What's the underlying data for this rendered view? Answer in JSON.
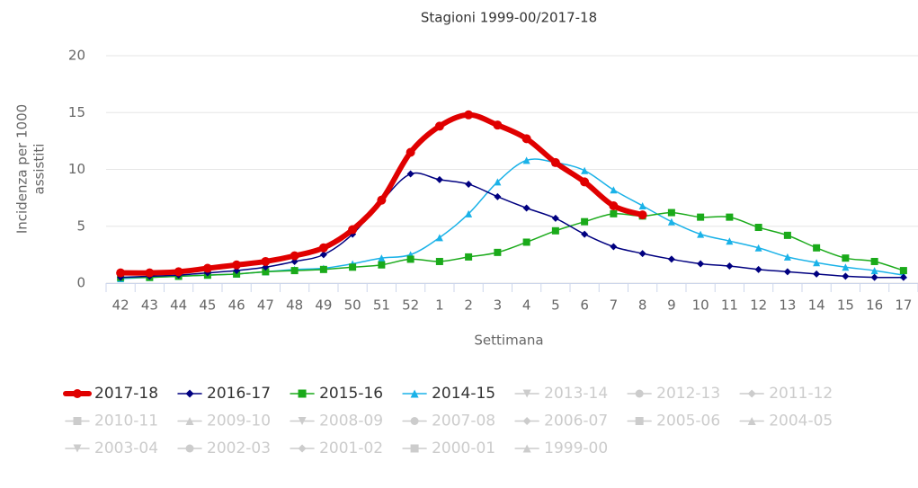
{
  "chart_data": {
    "type": "line",
    "title": "Stagioni 1999-00/2017-18",
    "xlabel": "Settimana",
    "ylabel": [
      "Incidenza per 1000",
      "assistiti"
    ],
    "categories": [
      "42",
      "43",
      "44",
      "45",
      "46",
      "47",
      "48",
      "49",
      "50",
      "51",
      "52",
      "1",
      "2",
      "3",
      "4",
      "5",
      "6",
      "7",
      "8",
      "9",
      "10",
      "11",
      "12",
      "13",
      "14",
      "15",
      "16",
      "17"
    ],
    "ylim": [
      0,
      20
    ],
    "yticks": [
      0,
      5,
      10,
      15,
      20
    ],
    "grid": true,
    "smooth": true,
    "series": [
      {
        "name": "2017-18",
        "color": "#e00000",
        "symbol": "circle",
        "width": 6,
        "values": [
          0.9,
          0.9,
          1.0,
          1.3,
          1.6,
          1.9,
          2.4,
          3.1,
          4.7,
          7.3,
          11.5,
          13.8,
          14.8,
          13.9,
          12.7,
          10.6,
          8.9,
          6.8,
          6.0,
          null,
          null,
          null,
          null,
          null,
          null,
          null,
          null,
          null
        ]
      },
      {
        "name": "2016-17",
        "color": "#000080",
        "symbol": "diamond",
        "width": 1.5,
        "values": [
          0.5,
          0.6,
          0.7,
          0.9,
          1.1,
          1.4,
          1.9,
          2.5,
          4.3,
          7.2,
          9.6,
          9.1,
          8.7,
          7.6,
          6.6,
          5.7,
          4.3,
          3.2,
          2.6,
          2.1,
          1.7,
          1.5,
          1.2,
          1.0,
          0.8,
          0.6,
          0.5,
          0.5
        ]
      },
      {
        "name": "2015-16",
        "color": "#1aaa1a",
        "symbol": "square",
        "width": 1.5,
        "values": [
          0.5,
          0.5,
          0.6,
          0.7,
          0.8,
          1.0,
          1.1,
          1.2,
          1.4,
          1.6,
          2.1,
          1.9,
          2.3,
          2.7,
          3.6,
          4.6,
          5.4,
          6.1,
          5.9,
          6.2,
          5.8,
          5.8,
          4.9,
          4.2,
          3.1,
          2.2,
          1.9,
          1.1
        ]
      },
      {
        "name": "2014-15",
        "color": "#1ab2e8",
        "symbol": "triangle",
        "width": 1.5,
        "values": [
          0.4,
          0.5,
          0.6,
          0.7,
          0.8,
          1.0,
          1.2,
          1.3,
          1.7,
          2.2,
          2.5,
          4.0,
          6.1,
          8.9,
          10.8,
          10.6,
          9.9,
          8.2,
          6.8,
          5.4,
          4.3,
          3.7,
          3.1,
          2.3,
          1.8,
          1.4,
          1.1,
          0.7
        ]
      }
    ],
    "hidden_color": "#cccccc",
    "hidden_series": [
      {
        "name": "2013-14",
        "symbol": "triangle-down"
      },
      {
        "name": "2012-13",
        "symbol": "circle"
      },
      {
        "name": "2011-12",
        "symbol": "diamond"
      },
      {
        "name": "2010-11",
        "symbol": "square"
      },
      {
        "name": "2009-10",
        "symbol": "triangle"
      },
      {
        "name": "2008-09",
        "symbol": "triangle-down"
      },
      {
        "name": "2007-08",
        "symbol": "circle"
      },
      {
        "name": "2006-07",
        "symbol": "diamond"
      },
      {
        "name": "2005-06",
        "symbol": "square"
      },
      {
        "name": "2004-05",
        "symbol": "triangle"
      },
      {
        "name": "2003-04",
        "symbol": "triangle-down"
      },
      {
        "name": "2002-03",
        "symbol": "circle"
      },
      {
        "name": "2001-02",
        "symbol": "diamond"
      },
      {
        "name": "2000-01",
        "symbol": "square"
      },
      {
        "name": "1999-00",
        "symbol": "triangle"
      }
    ]
  }
}
